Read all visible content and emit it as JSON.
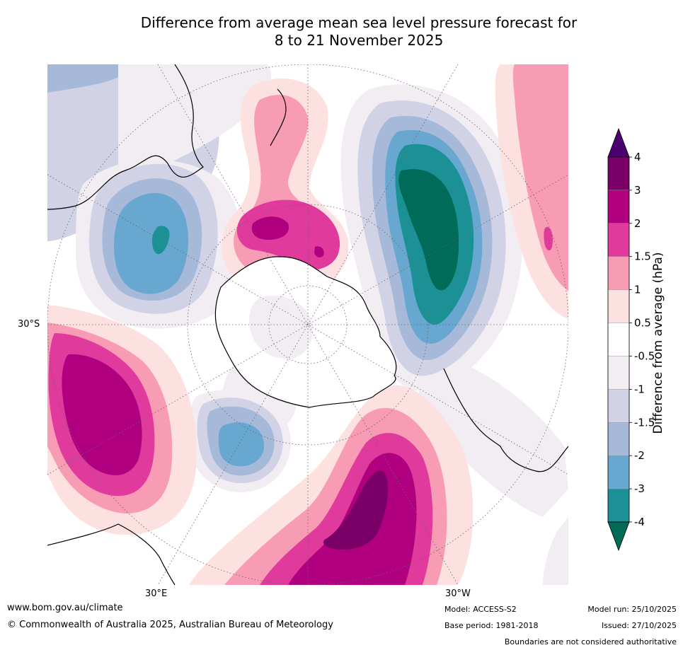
{
  "title": {
    "line1": "Difference from average mean sea level pressure forecast for",
    "line2": "8 to 21 November 2025"
  },
  "map": {
    "projection": "South polar stereographic",
    "lat_label": "30°S",
    "lon_labels": [
      "30°E",
      "30°W"
    ]
  },
  "colorbar": {
    "label": "Difference from average (hPa)",
    "ticks": [
      "4",
      "3",
      "2",
      "1.5",
      "1",
      "0.5",
      "-0.5",
      "-1",
      "-1.5",
      "-2",
      "-3",
      "-4"
    ],
    "bands": [
      {
        "range": "3 to 4",
        "color": "#7a0067"
      },
      {
        "range": "2 to 3",
        "color": "#b00080"
      },
      {
        "range": "1.5 to 2",
        "color": "#df3a9c"
      },
      {
        "range": "1 to 1.5",
        "color": "#f89bb4"
      },
      {
        "range": "0.5 to 1",
        "color": "#fde0e0"
      },
      {
        "range": "-0.5 to 0.5",
        "color": "#ffffff"
      },
      {
        "range": "-1 to -0.5",
        "color": "#f2ecf3"
      },
      {
        "range": "-1.5 to -1",
        "color": "#d1d2e6"
      },
      {
        "range": "-2 to -1.5",
        "color": "#a7b9d8"
      },
      {
        "range": "-3 to -2",
        "color": "#68a8d0"
      },
      {
        "range": "-4 to -3",
        "color": "#1b9196"
      }
    ],
    "over_color": "#4b0070",
    "under_color": "#006b58"
  },
  "footer": {
    "url": "www.bom.gov.au/climate",
    "copyright": "© Commonwealth of Australia 2025, Australian Bureau of Meteorology",
    "model": "Model: ACCESS-S2",
    "base_period": "Base period: 1981-2018",
    "model_run": "Model run: 25/10/2025",
    "issued": "Issued: 27/10/2025",
    "disclaimer": "Boundaries are not considered authoritative"
  }
}
